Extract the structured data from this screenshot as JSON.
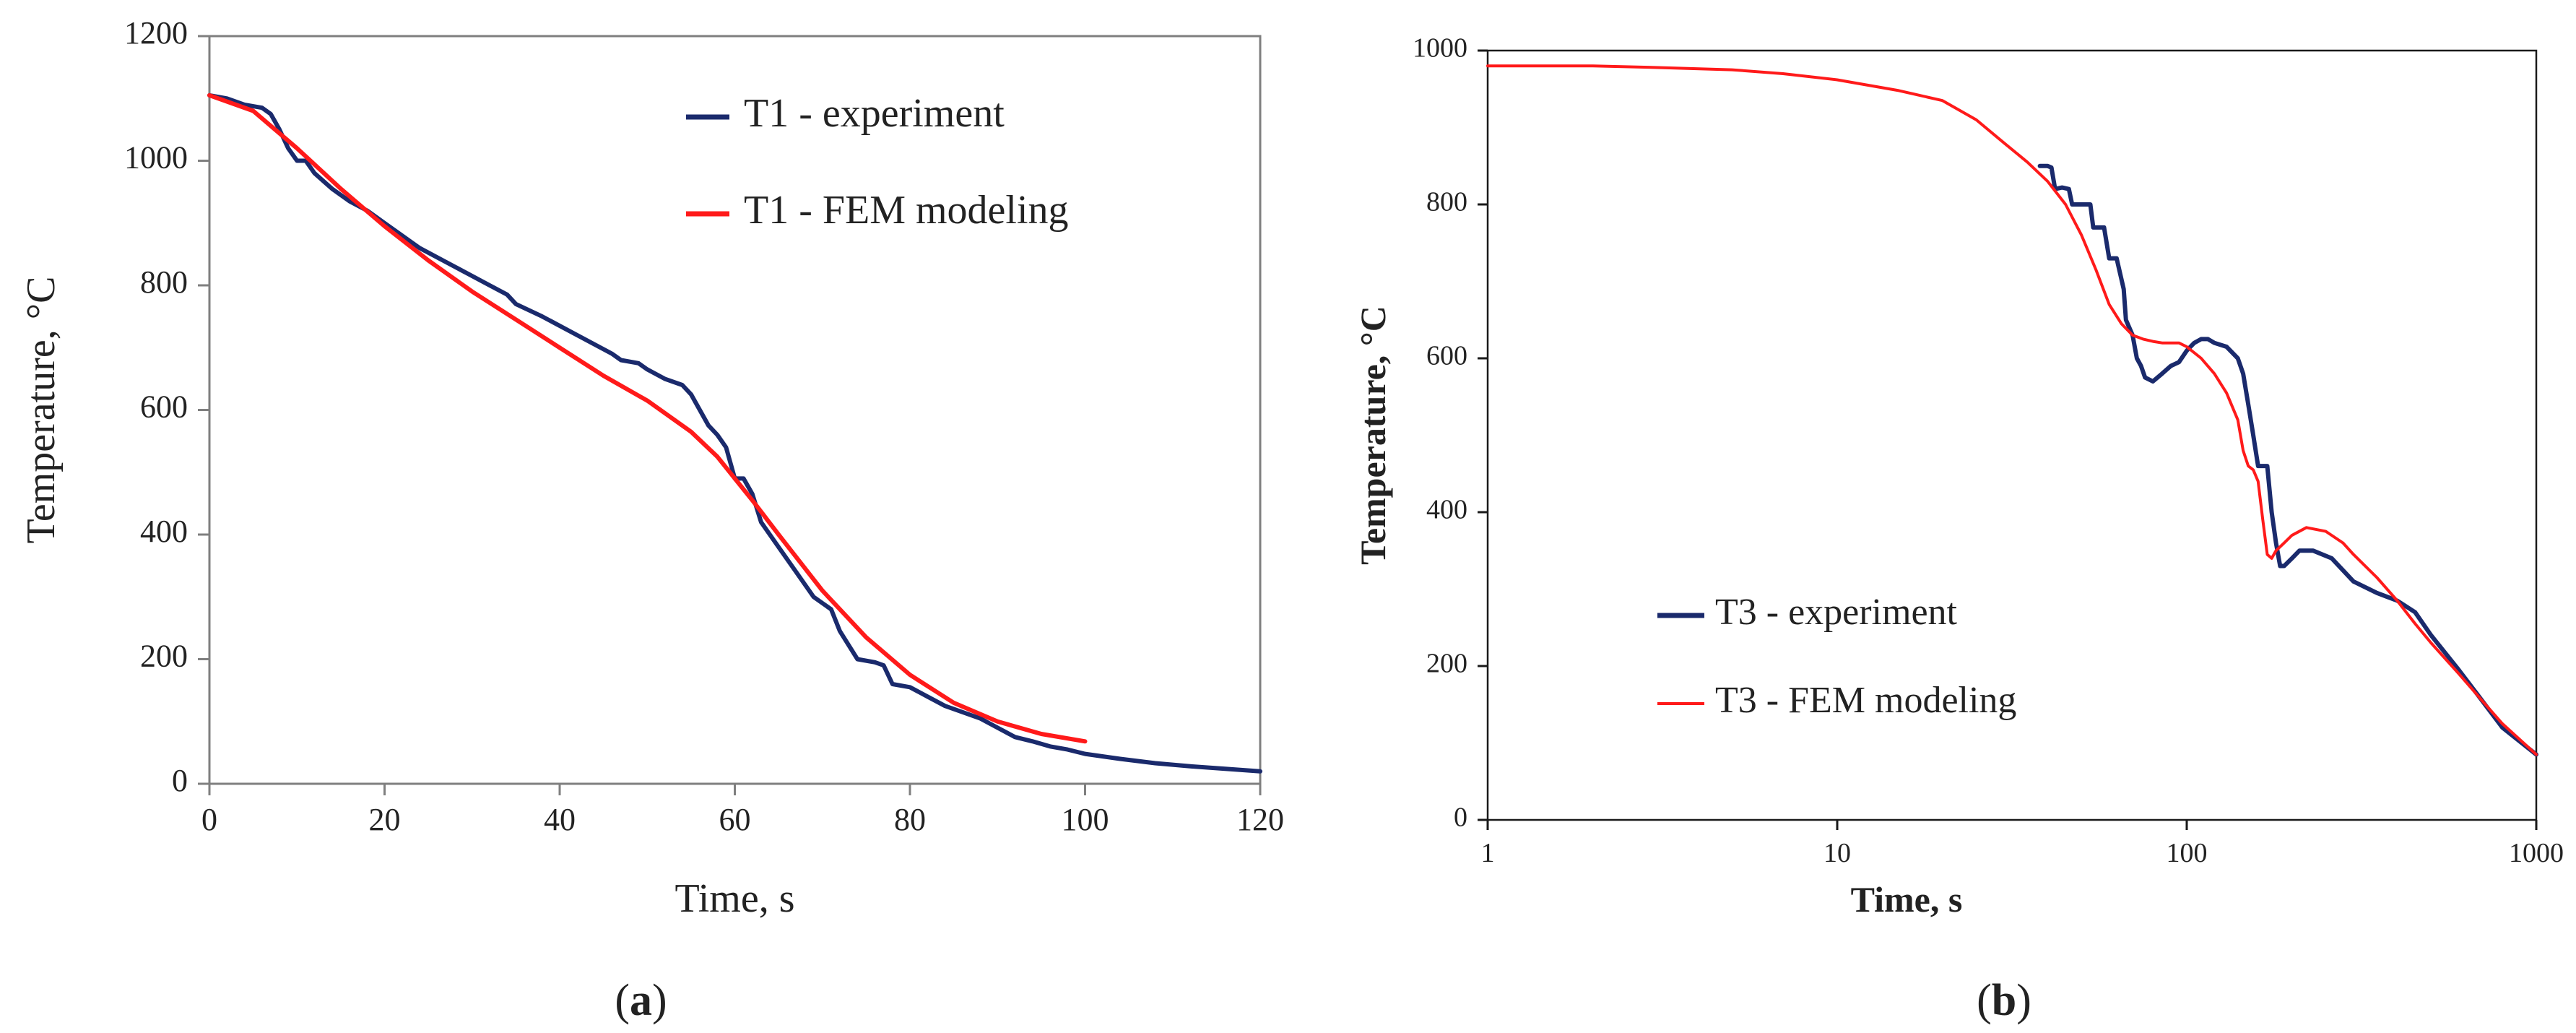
{
  "colors": {
    "experiment": "#1a2a6c",
    "fem": "#ff1a1a",
    "axis": "#7f7f7f"
  },
  "captions": {
    "a": "a",
    "b": "b"
  },
  "chart_data": [
    {
      "id": "a",
      "type": "line",
      "xscale": "linear",
      "xlabel": "Time, s",
      "ylabel": "Temperature, °C",
      "xlim": [
        0,
        120
      ],
      "ylim": [
        0,
        1200
      ],
      "xticks": [
        0,
        20,
        40,
        60,
        80,
        100,
        120
      ],
      "yticks": [
        0,
        200,
        400,
        600,
        800,
        1000,
        1200
      ],
      "legend_position": "top-right",
      "series": [
        {
          "name": "T1 - experiment",
          "color": "#1a2a6c",
          "x": [
            0,
            2,
            4,
            6,
            7,
            8,
            9,
            10,
            11,
            12,
            14,
            16,
            18,
            20,
            24,
            28,
            32,
            34,
            35,
            38,
            42,
            46,
            47,
            49,
            50,
            52,
            54,
            55,
            56,
            57,
            58,
            59,
            60,
            61,
            62,
            63,
            65,
            67,
            69,
            71,
            72,
            74,
            76,
            77,
            78,
            80,
            82,
            84,
            86,
            88,
            90,
            92,
            94,
            96,
            98,
            100,
            104,
            108,
            112,
            116,
            120
          ],
          "y": [
            1105,
            1100,
            1090,
            1085,
            1075,
            1050,
            1020,
            1000,
            1000,
            980,
            955,
            935,
            920,
            900,
            860,
            830,
            800,
            785,
            770,
            750,
            720,
            690,
            680,
            675,
            665,
            650,
            640,
            625,
            600,
            575,
            560,
            540,
            490,
            490,
            465,
            420,
            380,
            340,
            300,
            280,
            245,
            200,
            195,
            190,
            160,
            155,
            140,
            125,
            115,
            105,
            90,
            75,
            68,
            60,
            55,
            48,
            40,
            33,
            28,
            24,
            20
          ]
        },
        {
          "name": "T1 - FEM modeling",
          "color": "#ff1a1a",
          "x": [
            0,
            5,
            10,
            15,
            20,
            25,
            30,
            35,
            40,
            45,
            50,
            55,
            58,
            60,
            62,
            65,
            70,
            75,
            80,
            85,
            90,
            95,
            100
          ],
          "y": [
            1105,
            1080,
            1020,
            955,
            895,
            840,
            790,
            745,
            700,
            655,
            615,
            565,
            525,
            490,
            455,
            400,
            310,
            235,
            175,
            130,
            100,
            80,
            68
          ]
        }
      ]
    },
    {
      "id": "b",
      "type": "line",
      "xscale": "log",
      "xlabel": "Time, s",
      "ylabel": "Temperature, °C",
      "xlim": [
        1,
        1000
      ],
      "ylim": [
        0,
        1000
      ],
      "xticks": [
        1,
        10,
        100,
        1000
      ],
      "yticks": [
        0,
        200,
        400,
        600,
        800,
        1000
      ],
      "legend_position": "bottom-left",
      "series": [
        {
          "name": "T3 - experiment",
          "color": "#1a2a6c",
          "x": [
            38,
            40,
            41,
            42,
            44,
            46,
            47,
            50,
            53,
            54,
            58,
            60,
            63,
            66,
            67,
            70,
            72,
            74,
            76,
            80,
            85,
            90,
            95,
            100,
            105,
            110,
            115,
            120,
            130,
            140,
            145,
            150,
            155,
            160,
            165,
            170,
            175,
            180,
            185,
            190,
            200,
            210,
            230,
            260,
            300,
            350,
            400,
            450,
            500,
            600,
            700,
            800,
            1000
          ],
          "y": [
            850,
            850,
            848,
            820,
            822,
            820,
            800,
            800,
            800,
            770,
            770,
            730,
            730,
            690,
            650,
            630,
            600,
            590,
            575,
            570,
            580,
            590,
            595,
            610,
            620,
            625,
            625,
            620,
            615,
            600,
            580,
            540,
            500,
            460,
            460,
            460,
            400,
            360,
            330,
            330,
            340,
            350,
            350,
            340,
            310,
            295,
            285,
            270,
            240,
            195,
            155,
            120,
            85
          ]
        },
        {
          "name": "T3 - FEM modeling",
          "color": "#ff1a1a",
          "x": [
            1,
            2,
            3,
            5,
            7,
            10,
            15,
            20,
            25,
            30,
            35,
            40,
            45,
            50,
            55,
            60,
            65,
            70,
            75,
            80,
            85,
            90,
            95,
            100,
            110,
            120,
            130,
            140,
            145,
            150,
            155,
            160,
            165,
            170,
            175,
            180,
            190,
            200,
            220,
            250,
            280,
            300,
            350,
            400,
            450,
            500,
            600,
            700,
            800,
            1000
          ],
          "y": [
            980,
            980,
            978,
            975,
            970,
            962,
            948,
            935,
            910,
            880,
            855,
            830,
            800,
            760,
            715,
            670,
            645,
            630,
            625,
            622,
            620,
            620,
            620,
            615,
            600,
            580,
            555,
            520,
            480,
            460,
            455,
            440,
            390,
            345,
            340,
            350,
            360,
            370,
            380,
            375,
            360,
            345,
            315,
            285,
            255,
            230,
            190,
            155,
            125,
            85
          ]
        }
      ]
    }
  ]
}
